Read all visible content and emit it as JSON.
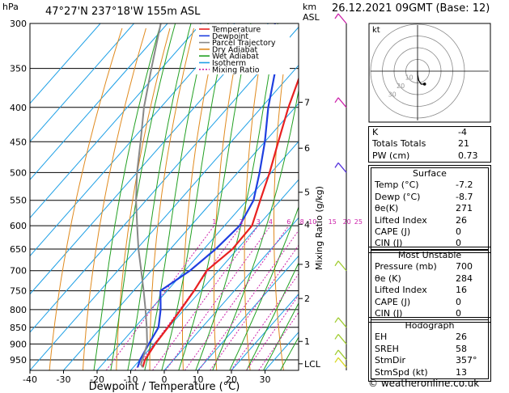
{
  "header": {
    "pressure_unit": "hPa",
    "location": "47°27'N  237°18'W  155m  ASL",
    "height_unit_top": "km",
    "height_unit_bottom": "ASL",
    "datetime": "26.12.2021  09GMT  (Base: 12)"
  },
  "footer": {
    "copyright": "© weatheronline.co.uk"
  },
  "chart_data": {
    "type": "line",
    "chart_kind": "skew-T log-p",
    "xlabel": "Dewpoint / Temperature (°C)",
    "ylabel_right": "Mixing Ratio (g/kg)",
    "x_ticks": [
      -40,
      -30,
      -20,
      -10,
      0,
      10,
      20,
      30
    ],
    "pressure_ticks": [
      300,
      350,
      400,
      450,
      500,
      550,
      600,
      650,
      700,
      750,
      800,
      850,
      900,
      950
    ],
    "height_ticks": [
      {
        "label": "7",
        "p": 393
      },
      {
        "label": "6",
        "p": 460
      },
      {
        "label": "5",
        "p": 535
      },
      {
        "label": "4",
        "p": 597
      },
      {
        "label": "3",
        "p": 685
      },
      {
        "label": "2",
        "p": 770
      },
      {
        "label": "1",
        "p": 892
      },
      {
        "label": "LCL",
        "p": 963
      }
    ],
    "mixing_ratio_labels": [
      "1",
      "2",
      "3",
      "4",
      "6",
      "8",
      "10",
      "15",
      "20",
      "25"
    ],
    "mixing_ratio_values": [
      1,
      2,
      3,
      4,
      6,
      8,
      10,
      15,
      20,
      25
    ],
    "legend": {
      "placement": "top-right",
      "entries": [
        {
          "name": "Temperature",
          "color": "#e82020"
        },
        {
          "name": "Dewpoint",
          "color": "#1f3fe0"
        },
        {
          "name": "Parcel Trajectory",
          "color": "#888888"
        },
        {
          "name": "Dry Adiabat",
          "color": "#e08a1e"
        },
        {
          "name": "Wet Adiabat",
          "color": "#22a022"
        },
        {
          "name": "Isotherm",
          "color": "#1ea0e6"
        },
        {
          "name": "Mixing Ratio",
          "color": "#cc22aa"
        }
      ]
    },
    "series": [
      {
        "name": "Temperature",
        "color": "#e82020",
        "points": [
          [
            -7.2,
            975
          ],
          [
            -8.5,
            950
          ],
          [
            -9.6,
            900
          ],
          [
            -10.2,
            850
          ],
          [
            -11,
            800
          ],
          [
            -12,
            750
          ],
          [
            -13.5,
            700
          ],
          [
            -11.5,
            650
          ],
          [
            -11.8,
            600
          ],
          [
            -16,
            550
          ],
          [
            -20.5,
            500
          ],
          [
            -26,
            450
          ],
          [
            -32,
            400
          ],
          [
            -38,
            350
          ],
          [
            -44,
            300
          ]
        ]
      },
      {
        "name": "Dewpoint",
        "color": "#1f3fe0",
        "points": [
          [
            -8.7,
            975
          ],
          [
            -10,
            950
          ],
          [
            -11.5,
            900
          ],
          [
            -13,
            850
          ],
          [
            -17,
            800
          ],
          [
            -22,
            750
          ],
          [
            -18.5,
            700
          ],
          [
            -16.5,
            650
          ],
          [
            -15.5,
            600
          ],
          [
            -18,
            550
          ],
          [
            -23.5,
            500
          ],
          [
            -30,
            450
          ],
          [
            -38,
            400
          ],
          [
            -46,
            350
          ],
          [
            -58,
            300
          ]
        ]
      },
      {
        "name": "Parcel Trajectory",
        "color": "#888888",
        "points": [
          [
            -7.2,
            975
          ],
          [
            -8.5,
            965
          ],
          [
            -12,
            900
          ],
          [
            -16.5,
            850
          ],
          [
            -21.5,
            800
          ],
          [
            -27,
            750
          ],
          [
            -33,
            700
          ],
          [
            -39.5,
            650
          ],
          [
            -46,
            600
          ],
          [
            -53,
            550
          ],
          [
            -60,
            500
          ],
          [
            -67,
            450
          ],
          [
            -75,
            400
          ],
          [
            -83,
            350
          ],
          [
            -92,
            300
          ]
        ]
      }
    ],
    "isotherm_range": [
      -110,
      40
    ],
    "dry_adiabat_thetas_K": [
      240,
      250,
      260,
      270,
      280,
      290,
      300,
      310,
      320,
      330,
      340,
      350,
      360,
      370,
      380,
      390,
      400,
      410,
      420,
      430,
      440,
      450,
      460
    ],
    "wet_adiabat_start_temps_C": [
      -20,
      -15,
      -10,
      -5,
      0,
      5,
      10,
      15,
      20,
      25,
      30,
      35
    ],
    "wind_profile": [
      {
        "p": 300,
        "color": "#cc22aa"
      },
      {
        "p": 400,
        "color": "#cc22aa"
      },
      {
        "p": 500,
        "color": "#5533dd"
      },
      {
        "p": 700,
        "color": "#a0cc30"
      },
      {
        "p": 850,
        "color": "#a0cc30"
      },
      {
        "p": 900,
        "color": "#a0cc30"
      },
      {
        "p": 950,
        "color": "#a0cc30"
      },
      {
        "p": 975,
        "color": "#d8d820"
      }
    ],
    "hodograph": {
      "label": "kt",
      "ring_labels": [
        "10",
        "20",
        "30"
      ],
      "points_kt": [
        [
          0,
          0
        ],
        [
          0,
          -3
        ],
        [
          1,
          -8
        ],
        [
          3,
          -11
        ],
        [
          6,
          -11
        ]
      ]
    }
  },
  "indices": {
    "rows": [
      {
        "label": "K",
        "value": "-4"
      },
      {
        "label": "Totals Totals",
        "value": "21"
      },
      {
        "label": "PW (cm)",
        "value": "0.73"
      }
    ]
  },
  "surface": {
    "title": "Surface",
    "rows": [
      {
        "label": "Temp (°C)",
        "value": "-7.2"
      },
      {
        "label": "Dewp (°C)",
        "value": "-8.7"
      },
      {
        "label": "θe(K)",
        "value": "271"
      },
      {
        "label": "Lifted Index",
        "value": "26"
      },
      {
        "label": "CAPE (J)",
        "value": "0"
      },
      {
        "label": "CIN (J)",
        "value": "0"
      }
    ]
  },
  "most_unstable": {
    "title": "Most Unstable",
    "rows": [
      {
        "label": "Pressure (mb)",
        "value": "700"
      },
      {
        "label": "θe (K)",
        "value": "284"
      },
      {
        "label": "Lifted Index",
        "value": "16"
      },
      {
        "label": "CAPE (J)",
        "value": "0"
      },
      {
        "label": "CIN (J)",
        "value": "0"
      }
    ]
  },
  "hodograph_table": {
    "title": "Hodograph",
    "rows": [
      {
        "label": "EH",
        "value": "26"
      },
      {
        "label": "SREH",
        "value": "58"
      },
      {
        "label": "StmDir",
        "value": "357°"
      },
      {
        "label": "StmSpd (kt)",
        "value": "13"
      }
    ]
  }
}
